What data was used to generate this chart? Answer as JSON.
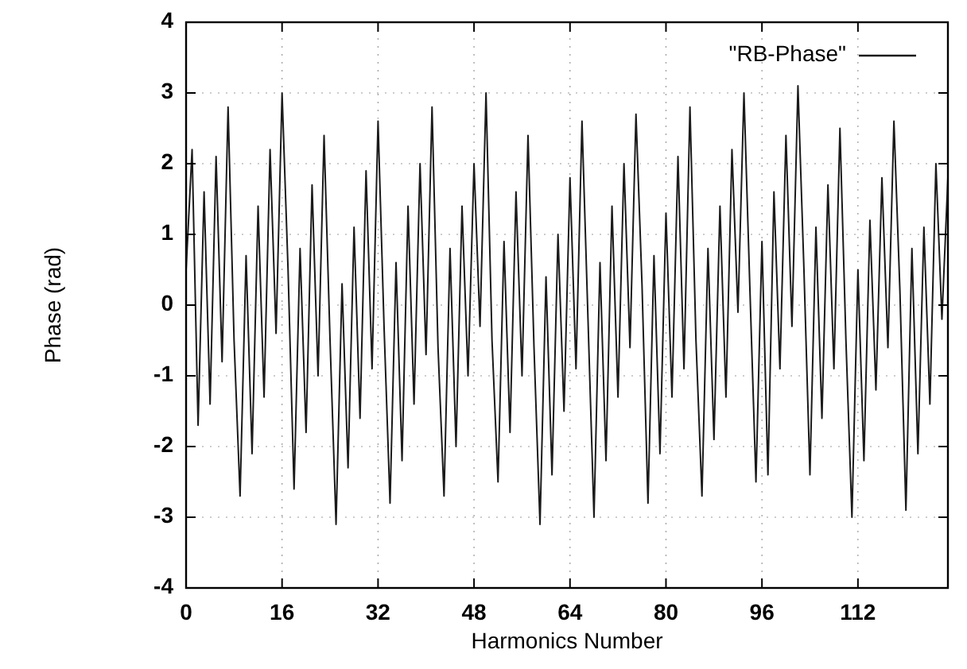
{
  "chart_data": {
    "type": "line",
    "xlabel": "Harmonics Number",
    "ylabel": "Phase (rad)",
    "xlim": [
      0,
      127
    ],
    "xticks": [
      0,
      16,
      32,
      48,
      64,
      80,
      96,
      112
    ],
    "ylim": [
      -4,
      4
    ],
    "yticks": [
      -4,
      -3,
      -2,
      -1,
      0,
      1,
      2,
      3,
      4
    ],
    "grid": true,
    "legend": "top right",
    "line_style": "solid",
    "marker": "none",
    "x": [
      0,
      1,
      2,
      3,
      4,
      5,
      6,
      7,
      8,
      9,
      10,
      11,
      12,
      13,
      14,
      15,
      16,
      17,
      18,
      19,
      20,
      21,
      22,
      23,
      24,
      25,
      26,
      27,
      28,
      29,
      30,
      31,
      32,
      33,
      34,
      35,
      36,
      37,
      38,
      39,
      40,
      41,
      42,
      43,
      44,
      45,
      46,
      47,
      48,
      49,
      50,
      51,
      52,
      53,
      54,
      55,
      56,
      57,
      58,
      59,
      60,
      61,
      62,
      63,
      64,
      65,
      66,
      67,
      68,
      69,
      70,
      71,
      72,
      73,
      74,
      75,
      76,
      77,
      78,
      79,
      80,
      81,
      82,
      83,
      84,
      85,
      86,
      87,
      88,
      89,
      90,
      91,
      92,
      93,
      94,
      95,
      96,
      97,
      98,
      99,
      100,
      101,
      102,
      103,
      104,
      105,
      106,
      107,
      108,
      109,
      110,
      111,
      112,
      113,
      114,
      115,
      116,
      117,
      118,
      119,
      120,
      121,
      122,
      123,
      124,
      125,
      126,
      127
    ],
    "series": [
      {
        "name": "\"RB-Phase\"",
        "color": "#1a1a1a",
        "values": [
          0.5,
          2.2,
          -1.7,
          1.6,
          -1.4,
          2.1,
          -0.8,
          2.8,
          -0.5,
          -2.7,
          0.7,
          -2.1,
          1.4,
          -1.3,
          2.2,
          -0.4,
          3.0,
          0.5,
          -2.6,
          0.8,
          -1.8,
          1.7,
          -1.0,
          2.4,
          -0.5,
          -3.1,
          0.3,
          -2.3,
          1.1,
          -1.6,
          1.9,
          -0.9,
          2.6,
          -0.3,
          -2.8,
          0.6,
          -2.2,
          1.4,
          -1.4,
          2.0,
          -0.7,
          2.8,
          -0.6,
          -2.7,
          0.8,
          -2.0,
          1.4,
          -1.0,
          2.0,
          -0.3,
          3.0,
          -0.5,
          -2.5,
          0.9,
          -1.8,
          1.6,
          -1.0,
          2.4,
          -0.6,
          -3.1,
          0.4,
          -2.4,
          1.0,
          -1.5,
          1.8,
          -0.9,
          2.6,
          -0.2,
          -3.0,
          0.6,
          -2.2,
          1.4,
          -1.3,
          2.0,
          -0.6,
          2.7,
          0.3,
          -2.8,
          0.7,
          -2.1,
          1.3,
          -1.3,
          2.1,
          -0.9,
          2.8,
          -0.5,
          -2.7,
          0.8,
          -1.9,
          1.4,
          -1.3,
          2.2,
          -0.1,
          3.0,
          0.2,
          -2.5,
          0.9,
          -2.4,
          1.6,
          -0.9,
          2.4,
          -0.3,
          3.1,
          0.5,
          -2.4,
          1.1,
          -1.6,
          1.7,
          -0.9,
          2.5,
          -0.5,
          -3.0,
          0.5,
          -2.2,
          1.2,
          -1.2,
          1.8,
          -0.6,
          2.6,
          0.2,
          -2.9,
          0.8,
          -2.1,
          1.1,
          -1.4,
          2.0,
          -0.2,
          1.8
        ]
      }
    ]
  }
}
